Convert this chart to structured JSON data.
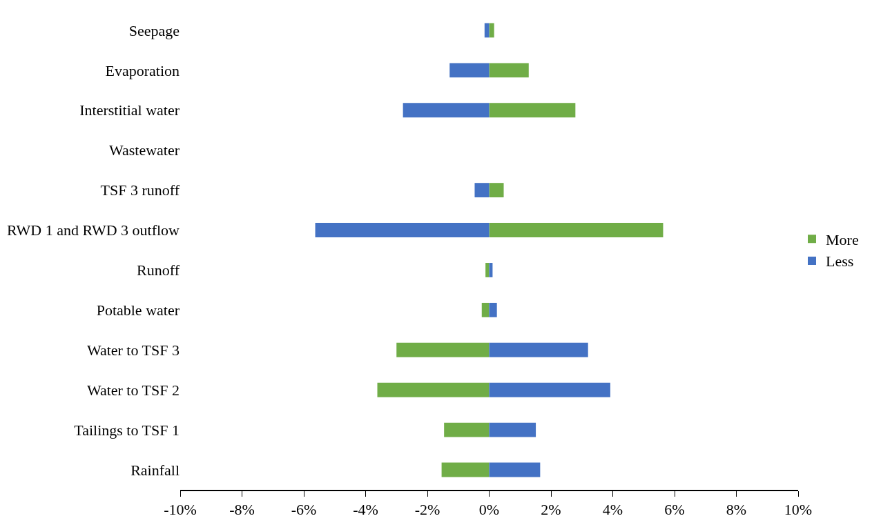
{
  "chart_data": {
    "type": "bar",
    "orientation": "horizontal",
    "categories": [
      "Seepage",
      "Evaporation",
      "Interstitial water",
      "Wastewater",
      "TSF 3 runoff",
      "RWD 1 and RWD 3 outflow",
      "Runoff",
      "Potable water",
      "Water to TSF 3",
      "Water to TSF 2",
      "Tailings to TSF 1",
      "Rainfall"
    ],
    "series": [
      {
        "name": "More",
        "color": "#70ad47",
        "values": [
          0.16,
          1.28,
          2.79,
          0,
          0.47,
          5.63,
          -0.12,
          -0.24,
          -3.0,
          -3.62,
          -1.46,
          -1.54
        ]
      },
      {
        "name": "Less",
        "color": "#4472c4",
        "values": [
          -0.15,
          -1.28,
          -2.79,
          0,
          -0.47,
          -5.63,
          0.11,
          0.25,
          3.2,
          3.92,
          1.51,
          1.65
        ]
      }
    ],
    "xlim": [
      -10,
      10
    ],
    "xticks": [
      {
        "value": -10,
        "label": "-10%"
      },
      {
        "value": -8,
        "label": "-8%"
      },
      {
        "value": -6,
        "label": "-6%"
      },
      {
        "value": -4,
        "label": "-4%"
      },
      {
        "value": -2,
        "label": "-2%"
      },
      {
        "value": 0,
        "label": "0%"
      },
      {
        "value": 2,
        "label": "2%"
      },
      {
        "value": 4,
        "label": "4%"
      },
      {
        "value": 6,
        "label": "6%"
      },
      {
        "value": 8,
        "label": "8%"
      },
      {
        "value": 10,
        "label": "10%"
      }
    ],
    "legend": "right",
    "stacked": true
  }
}
